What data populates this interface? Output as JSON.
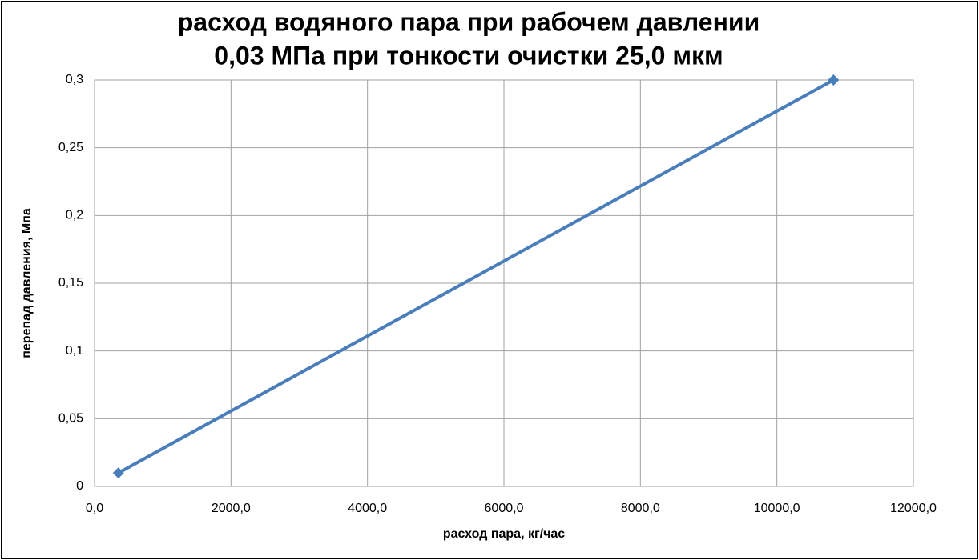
{
  "chart_data": {
    "type": "line",
    "title": [
      "расход водяного пара при рабочем давлении",
      "0,03 МПа при тонкости очистки 25,0 мкм"
    ],
    "xlabel": "расход пара, кг/час",
    "ylabel": "перепад давления, Мпа",
    "x": [
      350,
      10830
    ],
    "values": [
      0.01,
      0.3
    ],
    "color": "#4a7ebb",
    "xlim": [
      0,
      12000
    ],
    "xticks": [
      {
        "value": 0,
        "label": "0,0"
      },
      {
        "value": 2000,
        "label": "2000,0"
      },
      {
        "value": 4000,
        "label": "4000,0"
      },
      {
        "value": 6000,
        "label": "6000,0"
      },
      {
        "value": 8000,
        "label": "8000,0"
      },
      {
        "value": 10000,
        "label": "10000,0"
      },
      {
        "value": 12000,
        "label": "12000,0"
      }
    ],
    "ylim": [
      0,
      0.3
    ],
    "yticks": [
      0,
      {
        "value": 0.05,
        "label": "0,05"
      },
      {
        "value": 0.1,
        "label": "0,1"
      },
      {
        "value": 0.15,
        "label": "0,15"
      },
      {
        "value": 0.2,
        "label": "0,2"
      },
      {
        "value": 0.25,
        "label": "0,25"
      },
      {
        "value": 0.3,
        "label": "0,3"
      }
    ],
    "grid": true
  }
}
